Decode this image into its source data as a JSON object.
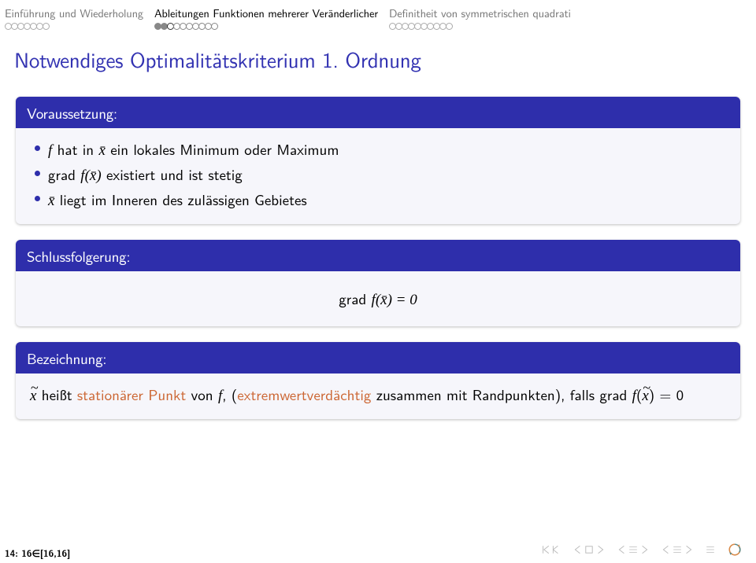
{
  "header": {
    "sections": [
      {
        "title": "Einführung und Wiederholung",
        "active": false,
        "dots": 7,
        "filled": [],
        "current": -1
      },
      {
        "title": "Ableitungen Funktionen mehrerer Veränderlicher",
        "active": true,
        "dots": 10,
        "filled": [
          0,
          1
        ],
        "current": 2
      },
      {
        "title": "Definitheit von symmetrischen quadrati",
        "active": false,
        "dots": 10,
        "filled": [],
        "current": -1
      }
    ]
  },
  "slide": {
    "title": "Notwendiges Optimalitätskriterium 1. Ordnung"
  },
  "blocks": {
    "voraussetzung": {
      "header": "Voraussetzung:",
      "items": {
        "b1_prefix": "f",
        "b1_mid": " hat in ",
        "b1_x": "x̄",
        "b1_rest": " ein lokales Minimum oder Maximum",
        "b2_prefix": "grad ",
        "b2_f": "f",
        "b2_paren": "(x̄)",
        "b2_rest": " existiert und ist stetig",
        "b3_x": "x̄",
        "b3_rest": " liegt im Inneren des zulässigen Gebietes"
      }
    },
    "schlussfolgerung": {
      "header": "Schlussfolgerung:",
      "eq_prefix": "grad ",
      "eq_f": "f",
      "eq_paren": "(x̄) = 0"
    },
    "bezeichnung": {
      "header": "Bezeichnung:",
      "x": "x",
      "t1": " heißt ",
      "hl": "stationärer Punkt",
      "t2": " von ",
      "f": "f",
      "t3": ", (",
      "hl2": "extremwertverdächtig",
      "t4": " zusammen mit Randpunkten), falls grad ",
      "f2": "f",
      "t5": "(",
      "x2": "x",
      "t6": ") = 0"
    }
  },
  "footer": {
    "text": "14: 16∈[16,16]"
  },
  "colors": {
    "title_color": "#3333b2",
    "block_header_bg": "#2e2eab",
    "block_body_bg": "#f6f6fb",
    "highlight": "#cc6633",
    "inactive_section": "#777777",
    "nav_icon": "#bbbbbb",
    "refresh_start": "#d98b4a",
    "refresh_end": "#5a8a8a"
  }
}
